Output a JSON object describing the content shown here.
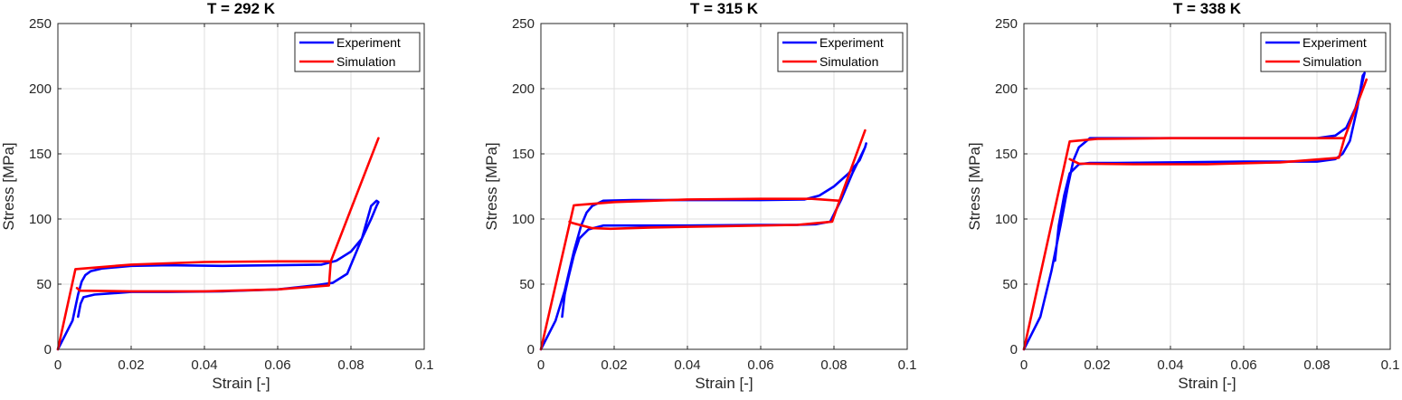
{
  "colors": {
    "experiment": "#0000ff",
    "simulation": "#ff0000",
    "grid": "#dfdfdf",
    "axis": "#262626"
  },
  "chart_data": [
    {
      "type": "line",
      "title": "T = 292 K",
      "xlabel": "Strain [-]",
      "ylabel": "Stress [MPa]",
      "xlim": [
        0,
        0.1
      ],
      "ylim": [
        0,
        250
      ],
      "xticks": [
        0,
        0.02,
        0.04,
        0.06,
        0.08,
        0.1
      ],
      "xtick_labels": [
        "0",
        "0.02",
        "0.04",
        "0.06",
        "0.08",
        "0.1"
      ],
      "yticks": [
        0,
        50,
        100,
        150,
        200,
        250
      ],
      "ytick_labels": [
        "0",
        "50",
        "100",
        "150",
        "200",
        "250"
      ],
      "grid": true,
      "legend_position": "top-right",
      "series": [
        {
          "name": "Experiment",
          "color": "#0000ff",
          "x": [
            0,
            0.004,
            0.0055,
            0.0065,
            0.0075,
            0.009,
            0.012,
            0.02,
            0.03,
            0.045,
            0.06,
            0.072,
            0.076,
            0.08,
            0.083,
            0.0855,
            0.087,
            0.0875,
            0.087,
            0.0855,
            0.083,
            0.079,
            0.075,
            0.07,
            0.06,
            0.045,
            0.03,
            0.02,
            0.01,
            0.007,
            0.0062,
            0.0055
          ],
          "y": [
            0,
            22,
            42,
            52,
            57,
            60,
            62,
            64,
            64.5,
            64,
            64.5,
            65,
            68,
            75,
            85,
            100,
            110,
            113,
            114,
            110,
            85,
            58,
            51,
            49,
            46,
            44.5,
            44,
            44,
            42,
            40,
            35,
            25
          ]
        },
        {
          "name": "Simulation",
          "color": "#ff0000",
          "x": [
            0,
            0.0048,
            0.02,
            0.04,
            0.06,
            0.0745,
            0.0875,
            0.0745,
            0.074,
            0.06,
            0.04,
            0.02,
            0.006,
            0.0052
          ],
          "y": [
            0,
            61.5,
            65,
            67,
            67.5,
            67.5,
            162,
            67.5,
            49,
            46,
            44.5,
            44.5,
            45,
            47
          ]
        }
      ]
    },
    {
      "type": "line",
      "title": "T = 315 K",
      "xlabel": "Strain [-]",
      "ylabel": "Stress [MPa]",
      "xlim": [
        0,
        0.1
      ],
      "ylim": [
        0,
        250
      ],
      "xticks": [
        0,
        0.02,
        0.04,
        0.06,
        0.08,
        0.1
      ],
      "xtick_labels": [
        "0",
        "0.02",
        "0.04",
        "0.06",
        "0.08",
        "0.1"
      ],
      "yticks": [
        0,
        50,
        100,
        150,
        200,
        250
      ],
      "ytick_labels": [
        "0",
        "50",
        "100",
        "150",
        "200",
        "250"
      ],
      "grid": true,
      "legend_position": "top-right",
      "series": [
        {
          "name": "Experiment",
          "color": "#0000ff",
          "x": [
            0,
            0.004,
            0.0065,
            0.009,
            0.011,
            0.0125,
            0.014,
            0.017,
            0.025,
            0.04,
            0.06,
            0.072,
            0.076,
            0.08,
            0.084,
            0.087,
            0.0885,
            0.0888,
            0.0885,
            0.085,
            0.082,
            0.079,
            0.075,
            0.07,
            0.06,
            0.04,
            0.025,
            0.017,
            0.013,
            0.0105,
            0.009,
            0.0075,
            0.0065,
            0.0058
          ],
          "y": [
            0,
            22,
            45,
            75,
            95,
            105,
            110,
            114,
            114.5,
            114.5,
            114.5,
            115,
            118,
            125,
            135,
            145,
            155,
            158,
            155,
            135,
            115,
            98,
            96,
            95.5,
            95.5,
            95,
            95,
            95,
            92,
            85,
            72,
            55,
            42,
            25
          ]
        },
        {
          "name": "Simulation",
          "color": "#ff0000",
          "x": [
            0,
            0.009,
            0.02,
            0.04,
            0.06,
            0.074,
            0.0815,
            0.0885,
            0.0815,
            0.0795,
            0.07,
            0.05,
            0.03,
            0.019,
            0.014,
            0.0085,
            0.0078
          ],
          "y": [
            0,
            110.5,
            113,
            115,
            115.5,
            115.5,
            114,
            168,
            114,
            98,
            95.5,
            94.5,
            93.5,
            92.5,
            93,
            97,
            98
          ]
        }
      ]
    },
    {
      "type": "line",
      "title": "T = 338 K",
      "xlabel": "Strain [-]",
      "ylabel": "Stress [MPa]",
      "xlim": [
        0,
        0.1
      ],
      "ylim": [
        0,
        250
      ],
      "xticks": [
        0,
        0.02,
        0.04,
        0.06,
        0.08,
        0.1
      ],
      "xtick_labels": [
        "0",
        "0.02",
        "0.04",
        "0.06",
        "0.08",
        "0.1"
      ],
      "yticks": [
        0,
        50,
        100,
        150,
        200,
        250
      ],
      "ytick_labels": [
        "0",
        "50",
        "100",
        "150",
        "200",
        "250"
      ],
      "grid": true,
      "legend_position": "top-right",
      "series": [
        {
          "name": "Experiment",
          "color": "#0000ff",
          "x": [
            0,
            0.0045,
            0.0075,
            0.01,
            0.012,
            0.0135,
            0.015,
            0.018,
            0.025,
            0.04,
            0.06,
            0.08,
            0.085,
            0.088,
            0.0905,
            0.092,
            0.093,
            0.0925,
            0.091,
            0.089,
            0.087,
            0.085,
            0.08,
            0.06,
            0.04,
            0.025,
            0.018,
            0.015,
            0.0125,
            0.011,
            0.0095,
            0.0085
          ],
          "y": [
            0,
            25,
            60,
            95,
            125,
            145,
            155,
            162,
            162,
            162,
            162,
            162,
            164,
            170,
            185,
            200,
            212,
            210,
            185,
            160,
            150,
            146,
            144,
            144,
            143.5,
            143,
            143,
            142,
            135,
            118,
            95,
            68
          ]
        },
        {
          "name": "Simulation",
          "color": "#ff0000",
          "x": [
            0,
            0.0125,
            0.02,
            0.04,
            0.06,
            0.08,
            0.0875,
            0.0935,
            0.0875,
            0.086,
            0.07,
            0.05,
            0.03,
            0.015,
            0.0125
          ],
          "y": [
            0,
            159.5,
            161.5,
            162,
            162,
            162,
            162,
            207,
            162,
            147,
            143.5,
            142,
            142,
            142.5,
            146
          ]
        }
      ]
    }
  ]
}
